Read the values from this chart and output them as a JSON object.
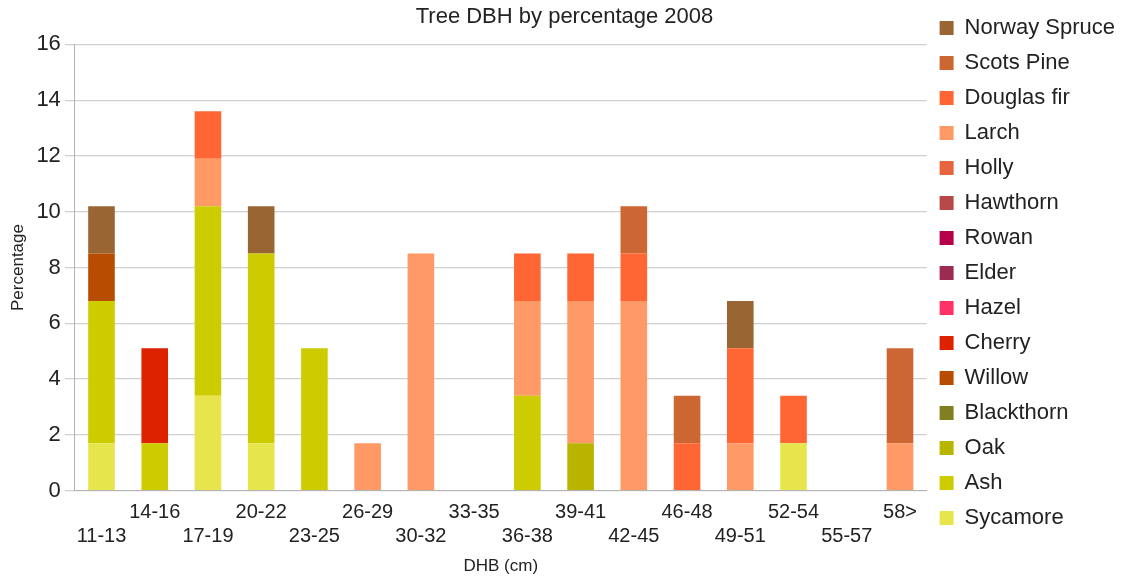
{
  "chart_data": {
    "type": "bar",
    "title": "Tree DBH by percentage 2008",
    "xlabel": "DHB (cm)",
    "ylabel": "Percentage",
    "categories": [
      "11-13",
      "14-16",
      "17-19",
      "20-22",
      "23-25",
      "26-29",
      "30-32",
      "33-35",
      "36-38",
      "39-41",
      "42-45",
      "46-48",
      "49-51",
      "52-54",
      "55-57",
      "58>"
    ],
    "stacked": true,
    "ylim": [
      0,
      16
    ],
    "yticks": [
      0,
      2,
      4,
      6,
      8,
      10,
      12,
      14,
      16
    ],
    "grid": "y",
    "legend": "right",
    "series": [
      {
        "name": "Sycamore",
        "color": "#e6e64c",
        "values": [
          1.7,
          0,
          3.4,
          1.7,
          0,
          0,
          0,
          0,
          0,
          0,
          0,
          0,
          0,
          1.7,
          0,
          0
        ]
      },
      {
        "name": "Ash",
        "color": "#cccc00",
        "values": [
          5.1,
          1.7,
          6.8,
          6.8,
          5.1,
          0,
          0,
          0,
          3.4,
          0,
          0,
          0,
          0,
          0,
          0,
          0
        ]
      },
      {
        "name": "Oak",
        "color": "#b8b400",
        "values": [
          0,
          0,
          0,
          0,
          0,
          0,
          0,
          0,
          0,
          1.7,
          0,
          0,
          0,
          0,
          0,
          0
        ]
      },
      {
        "name": "Blackthorn",
        "color": "#808020",
        "values": [
          0,
          0,
          0,
          0,
          0,
          0,
          0,
          0,
          0,
          0,
          0,
          0,
          0,
          0,
          0,
          0
        ]
      },
      {
        "name": "Willow",
        "color": "#b84c00",
        "values": [
          1.7,
          0,
          0,
          0,
          0,
          0,
          0,
          0,
          0,
          0,
          0,
          0,
          0,
          0,
          0,
          0
        ]
      },
      {
        "name": "Cherry",
        "color": "#dd2200",
        "values": [
          0,
          3.4,
          0,
          0,
          0,
          0,
          0,
          0,
          0,
          0,
          0,
          0,
          0,
          0,
          0,
          0
        ]
      },
      {
        "name": "Hazel",
        "color": "#ff3366",
        "values": [
          0,
          0,
          0,
          0,
          0,
          0,
          0,
          0,
          0,
          0,
          0,
          0,
          0,
          0,
          0,
          0
        ]
      },
      {
        "name": "Elder",
        "color": "#9c2a52",
        "values": [
          0,
          0,
          0,
          0,
          0,
          0,
          0,
          0,
          0,
          0,
          0,
          0,
          0,
          0,
          0,
          0
        ]
      },
      {
        "name": "Rowan",
        "color": "#b8004a",
        "values": [
          0,
          0,
          0,
          0,
          0,
          0,
          0,
          0,
          0,
          0,
          0,
          0,
          0,
          0,
          0,
          0
        ]
      },
      {
        "name": "Hawthorn",
        "color": "#b84848",
        "values": [
          0,
          0,
          0,
          0,
          0,
          0,
          0,
          0,
          0,
          0,
          0,
          0,
          0,
          0,
          0,
          0
        ]
      },
      {
        "name": "Holly",
        "color": "#e6653e",
        "values": [
          0,
          0,
          0,
          0,
          0,
          0,
          0,
          0,
          0,
          0,
          0,
          0,
          0,
          0,
          0,
          0
        ]
      },
      {
        "name": "Larch",
        "color": "#ff9966",
        "values": [
          0,
          0,
          1.7,
          0,
          0,
          1.7,
          8.5,
          0,
          3.4,
          5.1,
          6.8,
          0,
          1.7,
          0,
          0,
          1.7
        ]
      },
      {
        "name": "Douglas fir",
        "color": "#ff6633",
        "values": [
          0,
          0,
          1.7,
          0,
          0,
          0,
          0,
          0,
          1.7,
          1.7,
          1.7,
          1.7,
          3.4,
          1.7,
          0,
          0
        ]
      },
      {
        "name": "Scots Pine",
        "color": "#cc6633",
        "values": [
          0,
          0,
          0,
          0,
          0,
          0,
          0,
          0,
          0,
          0,
          1.7,
          1.7,
          0,
          0,
          0,
          3.4
        ]
      },
      {
        "name": "Norway Spruce",
        "color": "#996633",
        "values": [
          1.7,
          0,
          0,
          1.7,
          0,
          0,
          0,
          0,
          0,
          0,
          0,
          0,
          1.7,
          0,
          0,
          0
        ]
      }
    ]
  }
}
